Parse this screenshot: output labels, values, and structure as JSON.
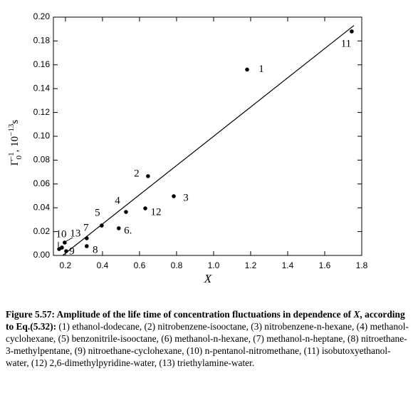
{
  "chart_data": {
    "type": "scatter",
    "xlabel": "X",
    "ylabel_parts": [
      {
        "text": "Γ"
      },
      {
        "text": "0",
        "shift": "sub"
      },
      {
        "text": "−1",
        "shift": "sup"
      },
      {
        "text": ", 10"
      },
      {
        "text": "−13",
        "shift": "sup"
      },
      {
        "text": "s"
      }
    ],
    "xlim": [
      0.135,
      1.8
    ],
    "ylim": [
      0,
      0.2
    ],
    "xticks": [
      0.2,
      0.4,
      0.6,
      {
        "value": 0.8,
        "label": "0.8"
      },
      {
        "value": 1,
        "label": "1.0"
      },
      1.2,
      1.4,
      1.6,
      1.8
    ],
    "yticks": [
      {
        "value": 0,
        "label": "0.00"
      },
      0.02,
      0.04,
      0.06,
      0.08,
      {
        "value": 0.1,
        "label": "0.10"
      },
      0.12,
      0.14,
      0.16,
      0.18,
      {
        "value": 0.2,
        "label": "0.20"
      }
    ],
    "color": "#000000",
    "x": [
      1.181,
      1.746,
      0.646,
      0.785,
      0.631,
      0.527,
      0.396,
      0.488,
      0.315,
      0.315,
      0.196,
      0.166,
      0.181,
      0.204
    ],
    "values": [
      0.156,
      0.188,
      0.0665,
      0.0497,
      0.0395,
      0.0365,
      0.0251,
      0.0228,
      0.0144,
      0.0078,
      0.0108,
      0.0054,
      0.0066,
      0.0036
    ],
    "labels": [
      "1",
      "11",
      "2",
      "3",
      "12",
      "4",
      "5",
      "6.",
      "7",
      "8",
      "13",
      "10",
      null,
      "9"
    ],
    "fit_line": {
      "x": [
        0.185,
        1.758
      ],
      "values": [
        0,
        0.193
      ]
    }
  },
  "caption": [
    {
      "text": "Figure 5.57: Amplitude of the life time of concentration fluctuations in dependence of ",
      "style": "bold"
    },
    {
      "text": "X",
      "style": "bold-italic"
    },
    {
      "text": ", according to Eq.(5.32): ",
      "style": "bold"
    },
    {
      "text": "(1) ethanol-dodecane, (2) nitrobenzene-isooctane, (3) nitrobenzene-n-hexane, (4) methanol-cyclohexane, (5) benzonitrile-isooctane, (6) methanol-n-hexane, (7) methanol-n-heptane, (8) nitroethane-3-methylpentane, (9) nitroethane-cyclohexane, (10) n-pentanol-nitromethane, (11) isobutoxyethanol-water, (12) 2,6-dimethylpyridine-water, (13) triethylamine-water.",
      "style": "normal"
    }
  ]
}
